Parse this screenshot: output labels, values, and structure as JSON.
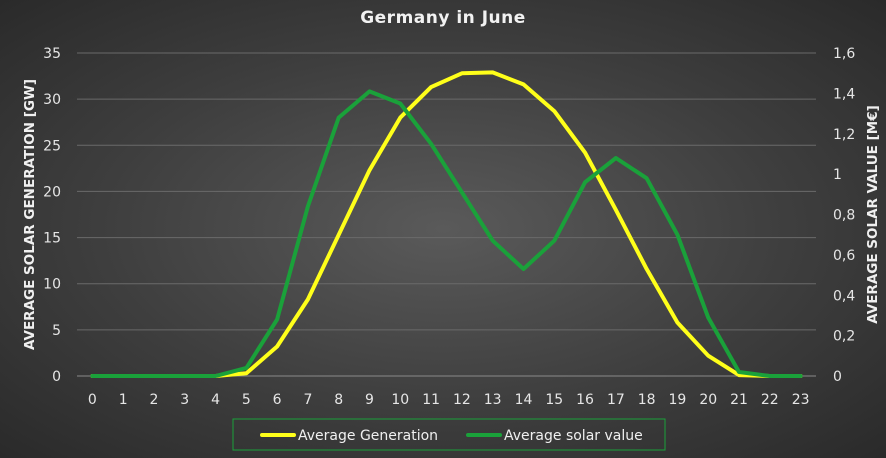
{
  "chart_data": {
    "type": "line",
    "title": "Germany in June",
    "x": [
      0,
      1,
      2,
      3,
      4,
      5,
      6,
      7,
      8,
      9,
      10,
      11,
      12,
      13,
      14,
      15,
      16,
      17,
      18,
      19,
      20,
      21,
      22,
      23
    ],
    "y_left": {
      "label": "AVERAGE SOLAR GENERATION [GW]",
      "lim": [
        0,
        35
      ],
      "ticks": [
        "0",
        "5",
        "10",
        "15",
        "20",
        "25",
        "30",
        "35"
      ]
    },
    "y_right": {
      "label": "AVERAGE SOLAR VALUE [M€]",
      "lim": [
        0,
        1.6
      ],
      "ticks": [
        "0",
        "0,2",
        "0,4",
        "0,6",
        "0,8",
        "1",
        "1,2",
        "1,4",
        "1,6"
      ]
    },
    "series": [
      {
        "name": "Average Generation",
        "axis": "left",
        "color": "#ffff1a",
        "values": [
          0,
          0,
          0,
          0,
          0,
          0.3,
          3.2,
          8.3,
          15.3,
          22.3,
          28.0,
          31.3,
          32.8,
          32.9,
          31.6,
          28.7,
          24.2,
          18.0,
          11.6,
          5.8,
          2.2,
          0.1,
          0,
          0
        ]
      },
      {
        "name": "Average solar value",
        "axis": "right",
        "color": "#1aa13a",
        "values": [
          0,
          0,
          0,
          0,
          0,
          0.04,
          0.28,
          0.84,
          1.28,
          1.41,
          1.35,
          1.15,
          0.91,
          0.67,
          0.53,
          0.67,
          0.96,
          1.08,
          0.98,
          0.7,
          0.29,
          0.02,
          0,
          0
        ]
      }
    ],
    "grid": true,
    "legend": "bottom"
  }
}
